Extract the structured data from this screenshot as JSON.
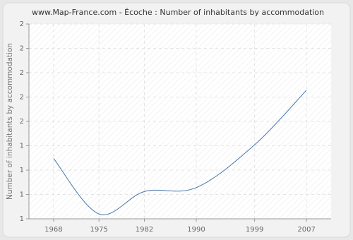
{
  "chart_data": {
    "type": "line",
    "title": "www.Map-France.com - Écoche : Number of inhabitants by accommodation",
    "y_label": "Number of inhabitants by accommodation",
    "x": [
      1968,
      1975,
      1982,
      1990,
      1999,
      2007
    ],
    "series": [
      {
        "name": "Number of inhabitants by accommodation",
        "color": "#4a76a8",
        "values": [
          1.31,
          1.025,
          1.14,
          1.16,
          1.38,
          1.66
        ]
      }
    ],
    "xlim": [
      1964.2,
      2010.8
    ],
    "xticks": [
      1968,
      1975,
      1982,
      1990,
      1999,
      2007
    ],
    "ylim": [
      1,
      2
    ],
    "yticks": [
      {
        "value": 1,
        "label": "1"
      },
      {
        "value": 1.125,
        "label": "1"
      },
      {
        "value": 1.25,
        "label": "1"
      },
      {
        "value": 1.375,
        "label": "1"
      },
      {
        "value": 1.5,
        "label": "2"
      },
      {
        "value": 1.625,
        "label": "2"
      },
      {
        "value": 1.75,
        "label": "2"
      },
      {
        "value": 1.875,
        "label": "2"
      },
      {
        "value": 2,
        "label": "2"
      }
    ],
    "grid": true
  }
}
